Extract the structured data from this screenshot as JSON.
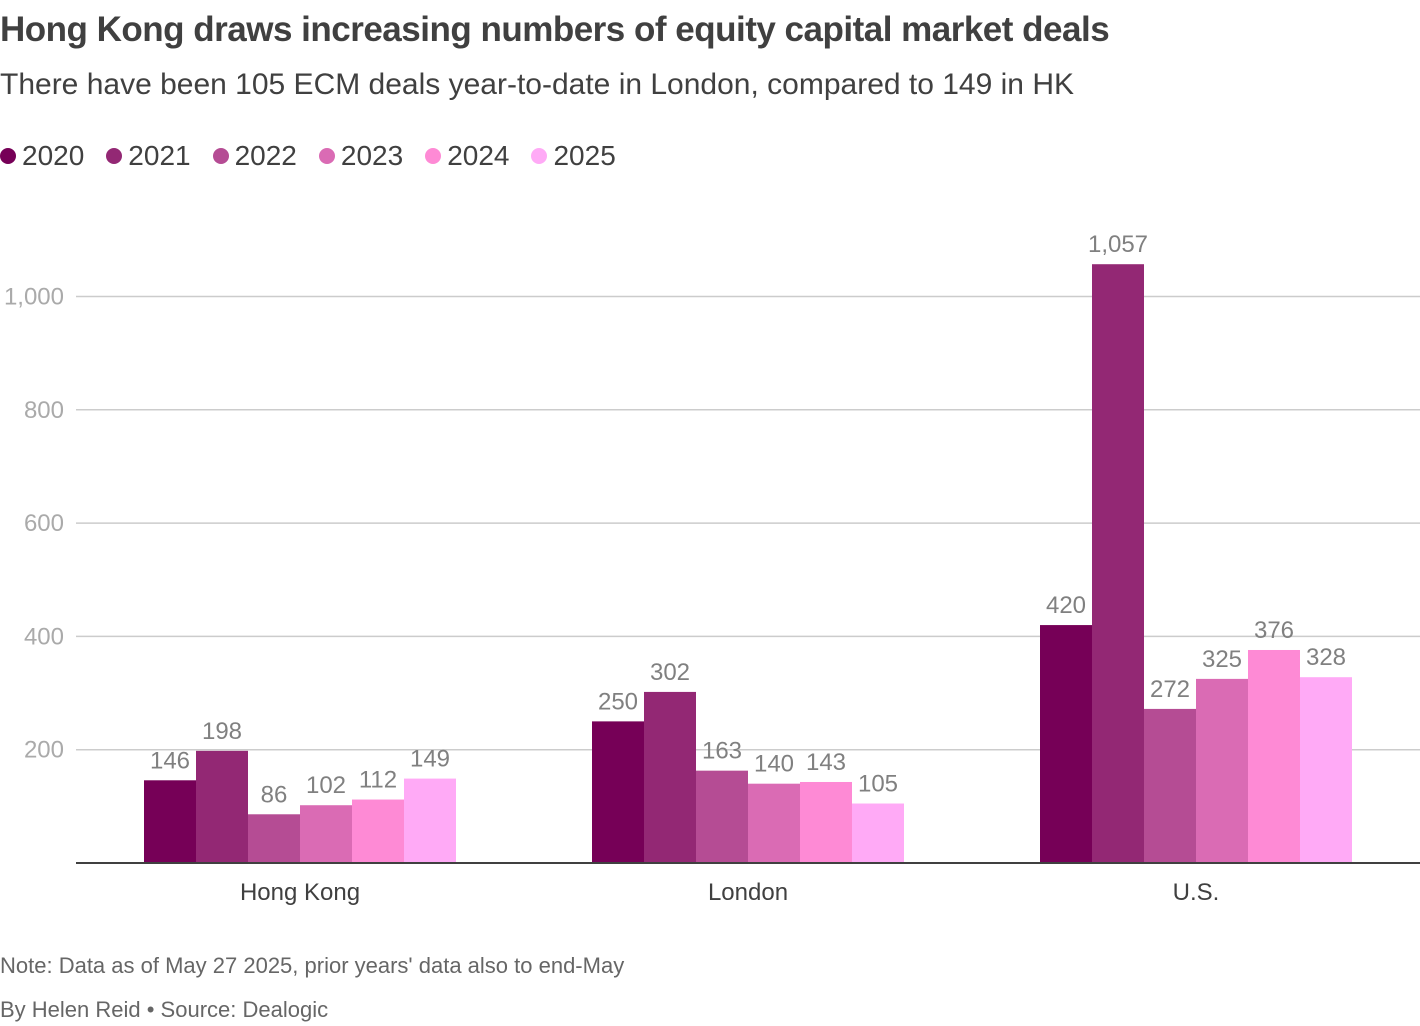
{
  "header": {
    "title": "Hong Kong draws increasing numbers of equity capital market deals",
    "subtitle": "There have been 105 ECM deals year-to-date in London, compared to 149 in HK"
  },
  "footer": {
    "note": "Note: Data as of May 27 2025, prior years' data also to end-May",
    "credit": "By Helen Reid • Source: Dealogic"
  },
  "chart_data": {
    "type": "bar",
    "title": "Hong Kong draws increasing numbers of equity capital market deals",
    "subtitle": "There have been 105 ECM deals year-to-date in London, compared to 149 in HK",
    "xlabel": "",
    "ylabel": "",
    "categories": [
      "Hong Kong",
      "London",
      "U.S."
    ],
    "series": [
      {
        "name": "2020",
        "color": "#760057",
        "values": [
          146,
          250,
          420
        ],
        "labels": [
          "146",
          "250",
          "420"
        ]
      },
      {
        "name": "2021",
        "color": "#932874",
        "values": [
          198,
          302,
          1057
        ],
        "labels": [
          "198",
          "302",
          "1,057"
        ]
      },
      {
        "name": "2022",
        "color": "#b54c94",
        "values": [
          86,
          163,
          272
        ],
        "labels": [
          "86",
          "163",
          "272"
        ]
      },
      {
        "name": "2023",
        "color": "#da6bb4",
        "values": [
          102,
          140,
          325
        ],
        "labels": [
          "102",
          "140",
          "325"
        ]
      },
      {
        "name": "2024",
        "color": "#fe8ad5",
        "values": [
          112,
          143,
          376
        ],
        "labels": [
          "112",
          "143",
          "376"
        ]
      },
      {
        "name": "2025",
        "color": "#ffaaf6",
        "values": [
          149,
          105,
          328
        ],
        "labels": [
          "149",
          "105",
          "328"
        ]
      }
    ],
    "yticks": [
      200,
      400,
      600,
      800,
      1000
    ],
    "ytick_labels": [
      "200",
      "400",
      "600",
      "800",
      "1,000"
    ],
    "ylim": [
      0,
      1060
    ],
    "grid": true,
    "legend": "top-left",
    "data_labels": true
  }
}
